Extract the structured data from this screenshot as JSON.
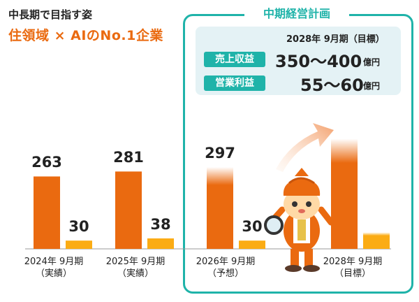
{
  "header": {
    "title": "中長期で目指す姿",
    "subtitle": "住領域 × AIのNo.1企業"
  },
  "plan": {
    "title": "中期経営計画",
    "period": "2028年 9月期（目標）",
    "sales_label": "売上収益",
    "sales_value": "350〜400",
    "profit_label": "営業利益",
    "profit_value": "55〜60",
    "unit": "億円"
  },
  "colors": {
    "sales": "#ea6a10",
    "profit": "#fbac14",
    "accent": "#1fb3a9",
    "panel": "#e4f2f5"
  },
  "chart_data": {
    "type": "bar",
    "categories": [
      [
        "2024年 9月期",
        "（実績）"
      ],
      [
        "2025年 9月期",
        "（実績）"
      ],
      [
        "2026年 9月期",
        "（予想）"
      ],
      [
        "2028年 9月期",
        "（目標）"
      ]
    ],
    "series": [
      {
        "name": "売上収益",
        "values": [
          263,
          281,
          297,
          400
        ]
      },
      {
        "name": "営業利益",
        "values": [
          30,
          38,
          30,
          60
        ]
      }
    ],
    "data_labels": [
      [
        "263",
        "30"
      ],
      [
        "281",
        "38"
      ],
      [
        "297",
        "30"
      ],
      [
        "",
        ""
      ]
    ],
    "faded_top": [
      false,
      false,
      true,
      true
    ],
    "mascot": "detective-mascot-with-magnifying-glass",
    "arrow": "upward-growth-arrow"
  }
}
